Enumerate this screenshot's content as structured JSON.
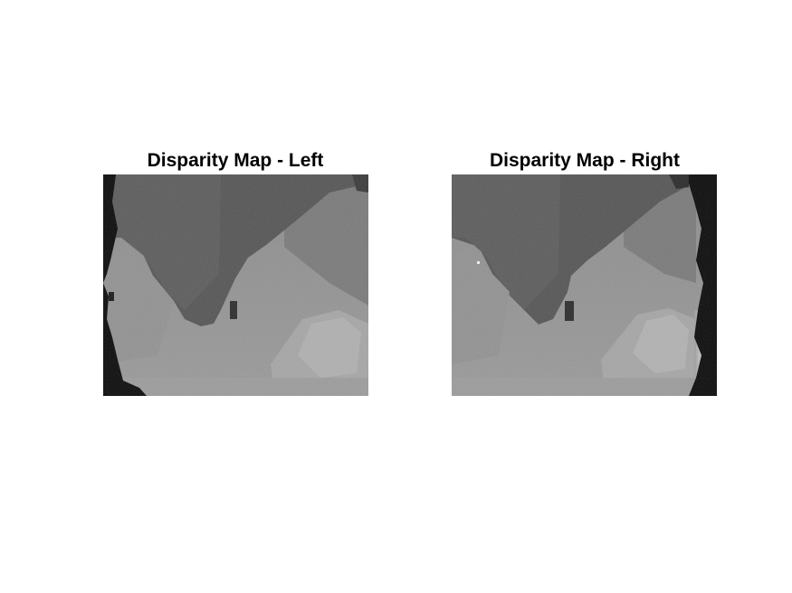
{
  "figure": {
    "panels": [
      {
        "title": "Disparity Map - Left",
        "image": "grayscale-disparity-map-left"
      },
      {
        "title": "Disparity Map - Right",
        "image": "grayscale-disparity-map-right"
      }
    ]
  }
}
